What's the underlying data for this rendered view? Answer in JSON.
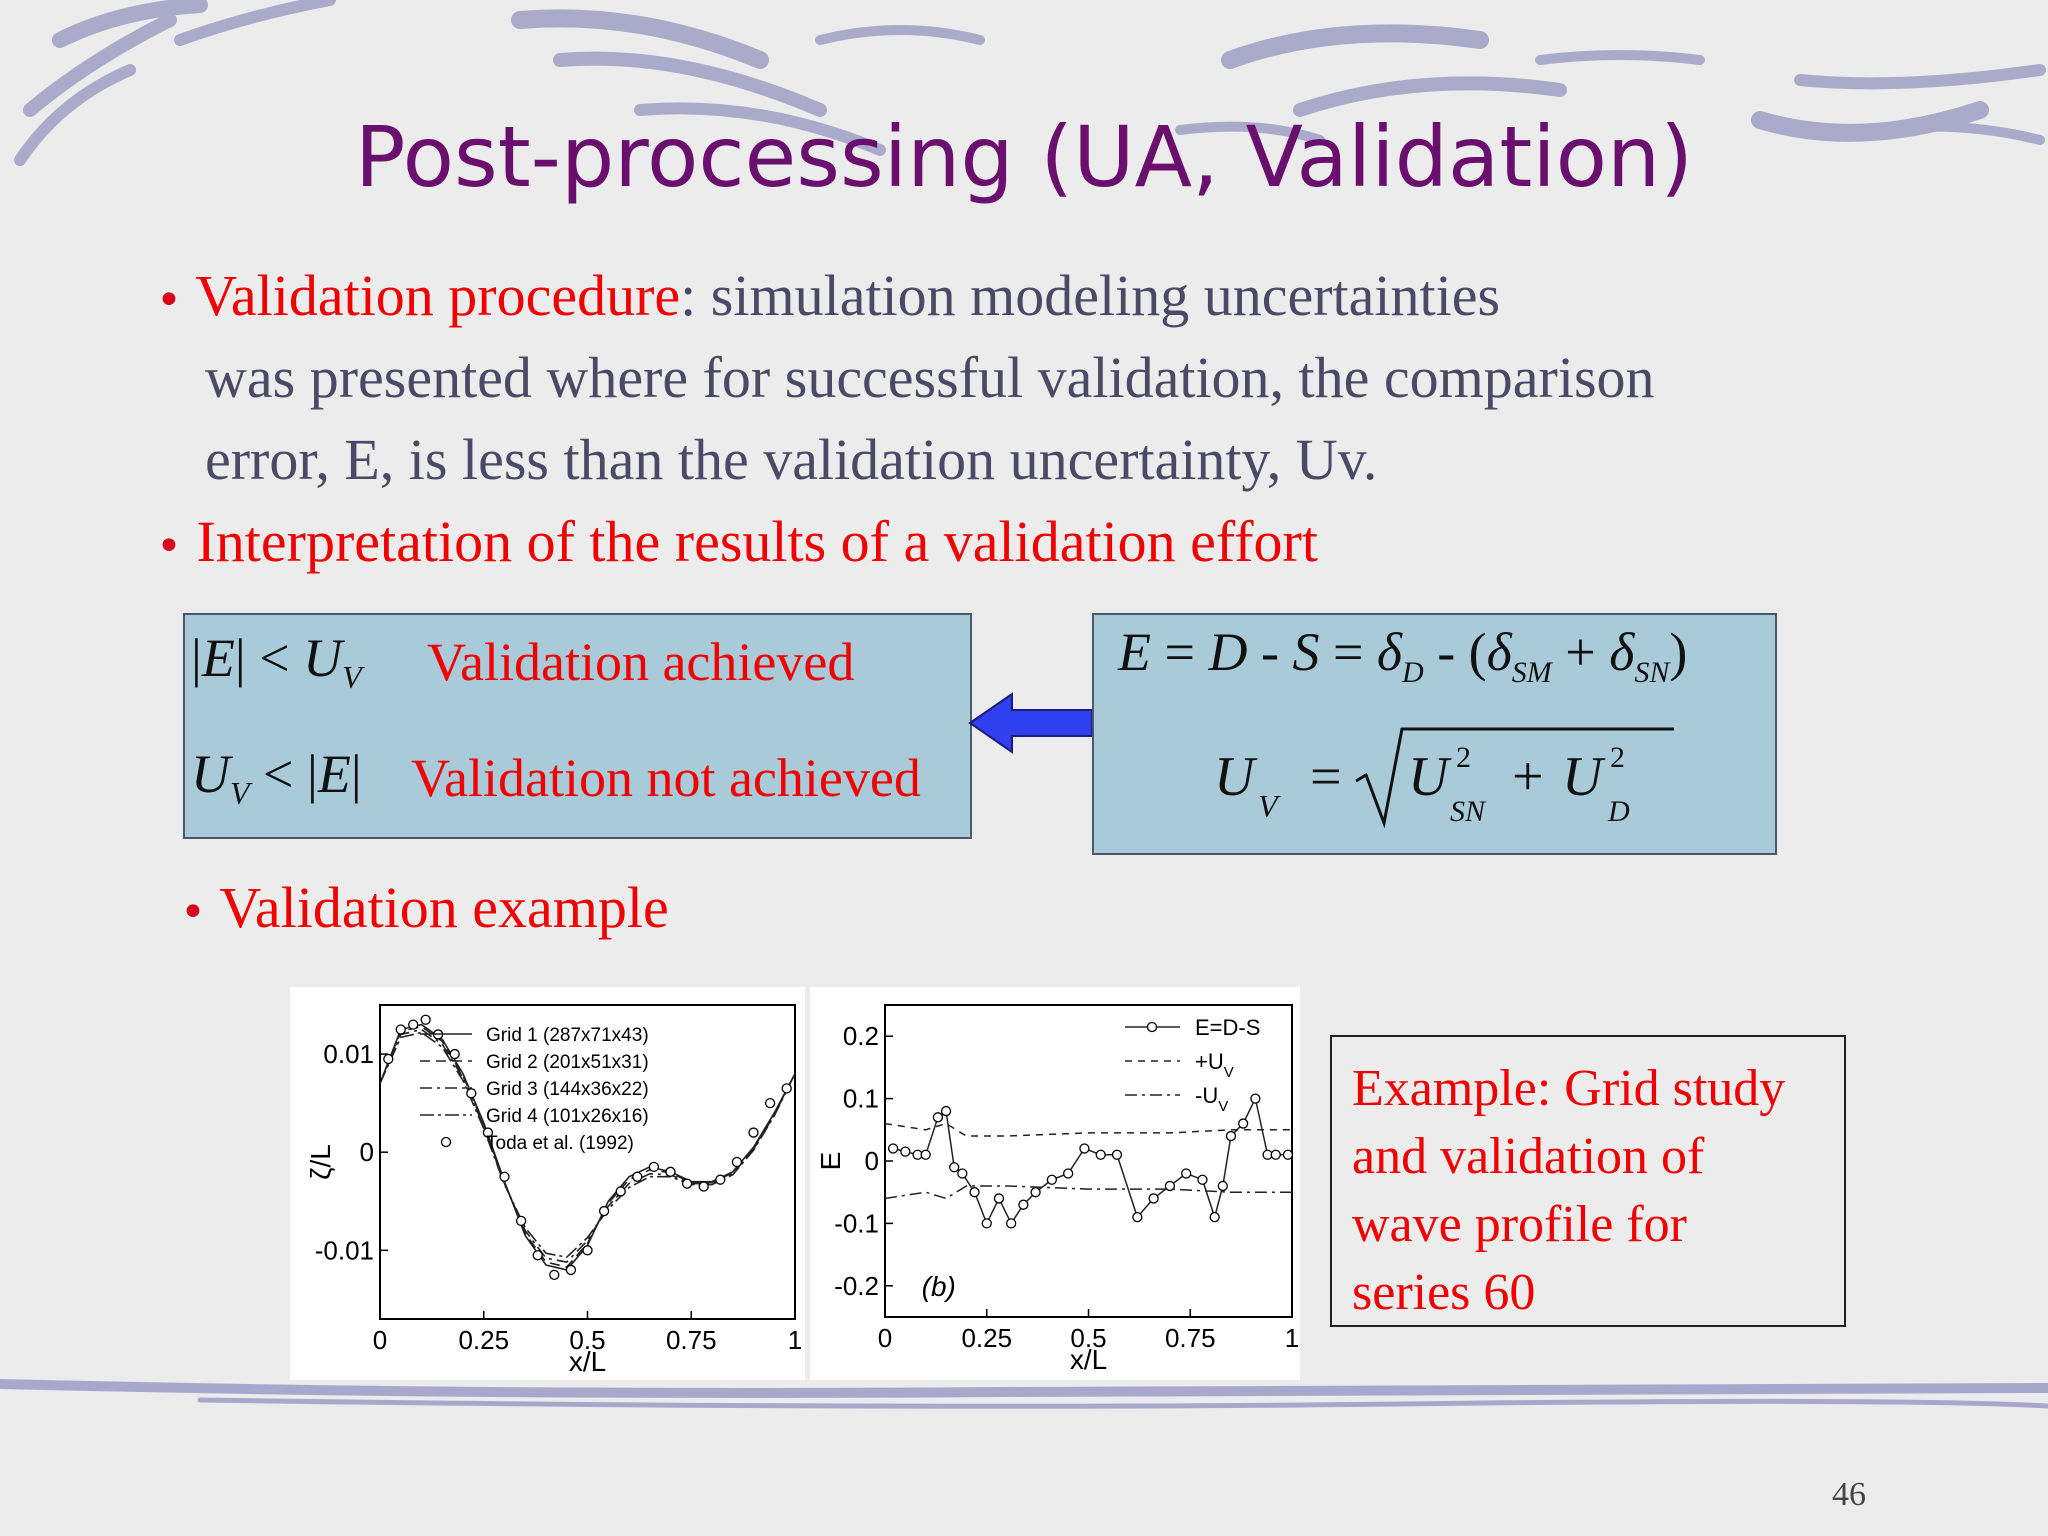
{
  "slide": {
    "title": "Post-processing (UA, Validation)",
    "page_number": "46",
    "bullets": [
      {
        "highlight": "Validation procedure",
        "rest": ": simulation modeling uncertainties",
        "line2": "was presented where for successful validation, the comparison",
        "line3": "error, E, is less than the validation uncertainty, Uv."
      },
      {
        "text": "Interpretation of the results of a validation effort"
      },
      {
        "text": "Validation example"
      }
    ]
  },
  "criteria_box": {
    "row1_label": "Validation achieved",
    "row2_label": "Validation not achieved"
  },
  "equation_box": {
    "eq1": "E = D - S = δD - (δSM + δSN)",
    "eq2": "UV = sqrt(U²SN + U²D)"
  },
  "arrow": {
    "direction": "left",
    "color": "#3040f0"
  },
  "example_note": {
    "lines": [
      "Example: Grid study",
      "and validation of",
      "wave profile for",
      "series 60"
    ]
  },
  "chart_data": [
    {
      "type": "line",
      "xlabel": "x/L",
      "ylabel": "ζ/L",
      "xlim": [
        0,
        1
      ],
      "ylim": [
        -0.017,
        0.015
      ],
      "xticks": [
        "0",
        "0.25",
        "0.5",
        "0.75",
        "1"
      ],
      "yticks": [
        "0.01",
        "0",
        "-0.01"
      ],
      "legend": [
        "Grid 1 (287x71x43)",
        "Grid 2 (201x51x31)",
        "Grid 3 (144x36x22)",
        "Grid 4 (101x26x16)",
        "Toda et al. (1992)"
      ],
      "legend_position": "top-right",
      "x": [
        0,
        0.05,
        0.1,
        0.15,
        0.2,
        0.25,
        0.3,
        0.35,
        0.4,
        0.45,
        0.5,
        0.55,
        0.6,
        0.65,
        0.7,
        0.75,
        0.8,
        0.85,
        0.9,
        0.95,
        1.0
      ],
      "series": [
        {
          "name": "Grid 1 (287x71x43)",
          "values": [
            0.007,
            0.0125,
            0.013,
            0.0115,
            0.008,
            0.003,
            -0.003,
            -0.0085,
            -0.0115,
            -0.012,
            -0.0095,
            -0.005,
            -0.0025,
            -0.0015,
            -0.002,
            -0.003,
            -0.003,
            -0.002,
            0.0005,
            0.004,
            0.008
          ]
        },
        {
          "name": "Grid 2 (201x51x31)",
          "values": [
            0.007,
            0.0123,
            0.0128,
            0.0113,
            0.0078,
            0.0028,
            -0.0031,
            -0.0083,
            -0.0112,
            -0.0117,
            -0.0093,
            -0.0052,
            -0.0028,
            -0.0018,
            -0.0021,
            -0.0031,
            -0.0031,
            -0.0021,
            0.0004,
            0.0039,
            0.008
          ]
        },
        {
          "name": "Grid 3 (144x36x22)",
          "values": [
            0.007,
            0.012,
            0.0125,
            0.011,
            0.0076,
            0.0026,
            -0.0032,
            -0.008,
            -0.0108,
            -0.0112,
            -0.009,
            -0.0055,
            -0.0032,
            -0.0022,
            -0.0023,
            -0.0032,
            -0.0032,
            -0.0022,
            0.0003,
            0.0038,
            0.008
          ]
        },
        {
          "name": "Grid 4 (101x26x16)",
          "values": [
            0.007,
            0.0117,
            0.0122,
            0.0107,
            0.0073,
            0.0024,
            -0.0033,
            -0.0077,
            -0.0103,
            -0.0107,
            -0.0087,
            -0.0058,
            -0.0036,
            -0.0025,
            -0.0025,
            -0.0033,
            -0.0033,
            -0.0023,
            0.0002,
            0.0037,
            0.008
          ]
        }
      ],
      "experiment": {
        "name": "Toda et al. (1992)",
        "x": [
          0.02,
          0.05,
          0.08,
          0.11,
          0.14,
          0.18,
          0.22,
          0.26,
          0.3,
          0.34,
          0.38,
          0.42,
          0.46,
          0.5,
          0.54,
          0.58,
          0.62,
          0.66,
          0.7,
          0.74,
          0.78,
          0.82,
          0.86,
          0.9,
          0.94,
          0.98
        ],
        "y": [
          0.0095,
          0.0125,
          0.013,
          0.0135,
          0.012,
          0.01,
          0.006,
          0.002,
          -0.0025,
          -0.007,
          -0.0105,
          -0.0125,
          -0.012,
          -0.01,
          -0.006,
          -0.004,
          -0.0025,
          -0.0015,
          -0.002,
          -0.0032,
          -0.0035,
          -0.0028,
          -0.001,
          0.002,
          0.005,
          0.0065
        ]
      }
    },
    {
      "type": "line",
      "annotation": "(b)",
      "xlabel": "x/L",
      "ylabel": "E",
      "xlim": [
        0,
        1
      ],
      "ylim": [
        -0.25,
        0.25
      ],
      "xticks": [
        "0",
        "0.25",
        "0.5",
        "0.75",
        "1"
      ],
      "yticks": [
        "0.2",
        "0.1",
        "0",
        "-0.1",
        "-0.2"
      ],
      "legend": [
        "E=D-S",
        "+U",
        "-U"
      ],
      "legend_subscript": "V",
      "legend_position": "top-right",
      "series": [
        {
          "name": "E=D-S",
          "x": [
            0.02,
            0.05,
            0.08,
            0.1,
            0.13,
            0.15,
            0.17,
            0.19,
            0.22,
            0.25,
            0.28,
            0.31,
            0.34,
            0.37,
            0.41,
            0.45,
            0.49,
            0.53,
            0.57,
            0.62,
            0.66,
            0.7,
            0.74,
            0.78,
            0.81,
            0.83,
            0.85,
            0.88,
            0.91,
            0.94,
            0.96,
            0.99
          ],
          "y": [
            0.02,
            0.015,
            0.01,
            0.01,
            0.07,
            0.08,
            -0.01,
            -0.02,
            -0.05,
            -0.1,
            -0.06,
            -0.1,
            -0.07,
            -0.05,
            -0.03,
            -0.02,
            0.02,
            0.01,
            0.01,
            -0.09,
            -0.06,
            -0.04,
            -0.02,
            -0.03,
            -0.09,
            -0.04,
            0.04,
            0.06,
            0.1,
            0.01,
            0.01,
            0.01
          ]
        },
        {
          "name": "+U",
          "x": [
            0,
            0.1,
            0.15,
            0.2,
            0.3,
            0.5,
            0.7,
            0.85,
            1.0
          ],
          "y": [
            0.06,
            0.05,
            0.06,
            0.04,
            0.04,
            0.045,
            0.045,
            0.05,
            0.05
          ]
        },
        {
          "name": "-U",
          "x": [
            0,
            0.1,
            0.15,
            0.2,
            0.3,
            0.5,
            0.7,
            0.85,
            1.0
          ],
          "y": [
            -0.06,
            -0.05,
            -0.06,
            -0.04,
            -0.04,
            -0.045,
            -0.045,
            -0.05,
            -0.05
          ]
        }
      ]
    }
  ]
}
